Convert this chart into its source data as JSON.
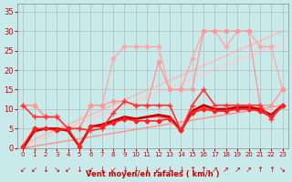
{
  "background_color": "#c8eaea",
  "grid_color": "#b0b0b0",
  "xlabel": "Vent moyen/en rafales ( km/h )",
  "x_ticks": [
    0,
    1,
    2,
    3,
    4,
    5,
    6,
    7,
    8,
    9,
    10,
    11,
    12,
    13,
    14,
    15,
    16,
    17,
    18,
    19,
    20,
    21,
    22,
    23
  ],
  "ylim": [
    0,
    37
  ],
  "xlim": [
    -0.5,
    23.5
  ],
  "yticks": [
    0,
    5,
    10,
    15,
    20,
    25,
    30,
    35
  ],
  "series": [
    {
      "x": [
        0,
        1,
        2,
        3,
        4,
        5,
        6,
        7,
        8,
        9,
        10,
        11,
        12,
        13,
        14,
        15,
        16,
        17,
        18,
        19,
        20,
        21,
        22,
        23
      ],
      "y": [
        11,
        11,
        8,
        8,
        5,
        5,
        11,
        11,
        23,
        26,
        26,
        26,
        26,
        15,
        15,
        23,
        30,
        30,
        26,
        30,
        30,
        26,
        26,
        15
      ],
      "color": "#ffaaaa",
      "linewidth": 1.0,
      "marker": "D",
      "markersize": 2.5,
      "zorder": 2
    },
    {
      "x": [
        0,
        1,
        2,
        3,
        4,
        5,
        6,
        7,
        8,
        9,
        10,
        11,
        12,
        13,
        14,
        15,
        16,
        17,
        18,
        19,
        20,
        21,
        22,
        23
      ],
      "y": [
        11,
        11,
        8,
        8,
        5,
        5,
        11,
        11,
        12,
        12,
        11,
        11,
        22,
        15,
        15,
        15,
        30,
        30,
        30,
        30,
        30,
        11,
        11,
        15
      ],
      "color": "#ff9999",
      "linewidth": 1.0,
      "marker": "D",
      "markersize": 2.5,
      "zorder": 2
    },
    {
      "x": [
        0,
        23
      ],
      "y": [
        0.5,
        27
      ],
      "color": "#ffcccc",
      "linewidth": 1.2,
      "marker": null,
      "markersize": 0,
      "zorder": 1
    },
    {
      "x": [
        0,
        23
      ],
      "y": [
        1,
        30
      ],
      "color": "#ffbbbb",
      "linewidth": 1.2,
      "marker": null,
      "markersize": 0,
      "zorder": 1
    },
    {
      "x": [
        0,
        23
      ],
      "y": [
        0,
        11
      ],
      "color": "#ff9999",
      "linewidth": 1.2,
      "marker": null,
      "markersize": 0,
      "zorder": 1
    },
    {
      "x": [
        0,
        1,
        2,
        3,
        4,
        5,
        6,
        7,
        8,
        9,
        10,
        11,
        12,
        13,
        14,
        15,
        16,
        17,
        18,
        19,
        20,
        21,
        22,
        23
      ],
      "y": [
        11,
        8,
        8,
        8,
        5,
        5,
        4.5,
        5,
        9,
        12,
        11,
        11,
        11,
        11,
        4.5,
        11,
        15,
        11,
        11,
        11,
        11,
        11,
        7.5,
        11
      ],
      "color": "#ff3333",
      "linewidth": 1.2,
      "marker": "+",
      "markersize": 4,
      "zorder": 6
    },
    {
      "x": [
        0,
        1,
        2,
        3,
        4,
        5,
        6,
        7,
        8,
        9,
        10,
        11,
        12,
        13,
        14,
        15,
        16,
        17,
        18,
        19,
        20,
        21,
        22,
        23
      ],
      "y": [
        0.5,
        5,
        5,
        4.5,
        5,
        0.5,
        5.5,
        5.5,
        6.5,
        7.5,
        7,
        7,
        7,
        7.5,
        4.5,
        9,
        10,
        9.5,
        9.5,
        10,
        10,
        9.5,
        8,
        11
      ],
      "color": "#ff2222",
      "linewidth": 1.2,
      "marker": "D",
      "markersize": 2.5,
      "zorder": 6
    },
    {
      "x": [
        0,
        1,
        2,
        3,
        4,
        5,
        6,
        7,
        8,
        9,
        10,
        11,
        12,
        13,
        14,
        15,
        16,
        17,
        18,
        19,
        20,
        21,
        22,
        23
      ],
      "y": [
        0,
        4.5,
        5,
        5,
        4.5,
        0.5,
        5.5,
        6,
        7,
        8,
        7.5,
        8,
        8.5,
        8,
        4.5,
        9.5,
        11,
        10,
        10,
        10.5,
        10.5,
        10,
        8.5,
        11
      ],
      "color": "#cc0000",
      "linewidth": 2.0,
      "marker": null,
      "markersize": 0,
      "zorder": 5
    },
    {
      "x": [
        0,
        1,
        2,
        3,
        4,
        5,
        6,
        7,
        8,
        9,
        10,
        11,
        12,
        13,
        14,
        15,
        16,
        17,
        18,
        19,
        20,
        21,
        22,
        23
      ],
      "y": [
        0,
        4,
        5,
        5,
        4.5,
        0.5,
        5.5,
        5.5,
        6.5,
        7.5,
        7.5,
        8,
        8,
        7.5,
        4.5,
        9,
        10.5,
        9.5,
        9.5,
        10,
        10,
        9.5,
        8,
        10.5
      ],
      "color": "#ff6666",
      "linewidth": 1.2,
      "marker": null,
      "markersize": 0,
      "zorder": 4
    }
  ],
  "wind_symbols": [
    "↙",
    "↙",
    "↓",
    "↘",
    "↙",
    "↓",
    "↙",
    "↓",
    "↙",
    "↓",
    "↓",
    "↓",
    "↙",
    "↓",
    "↓",
    "↑",
    "↑",
    "↗",
    "↗",
    "↗",
    "↗",
    "↑",
    "↑",
    "↘"
  ],
  "wind_symbol_color": "#cc0000",
  "wind_symbol_fontsize": 6
}
